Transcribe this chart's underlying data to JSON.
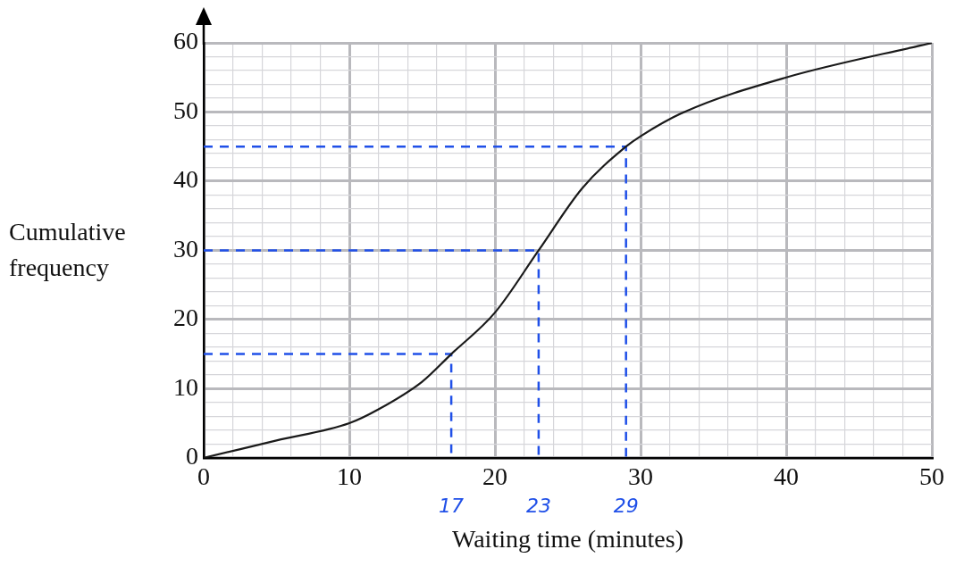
{
  "chart_data": {
    "type": "line",
    "xlabel": "Waiting time (minutes)",
    "ylabel": "Cumulative frequency",
    "xlim": [
      0,
      50
    ],
    "ylim": [
      0,
      60
    ],
    "xticks": [
      0,
      {
        "value": 2,
        "label": null
      },
      {
        "value": 4,
        "label": null
      },
      {
        "value": 6,
        "label": null
      },
      {
        "value": 8,
        "label": null
      },
      10,
      {
        "value": 12,
        "label": null
      },
      {
        "value": 14,
        "label": null
      },
      {
        "value": 16,
        "label": null
      },
      {
        "value": 18,
        "label": null
      },
      20,
      {
        "value": 22,
        "label": null
      },
      {
        "value": 24,
        "label": null
      },
      {
        "value": 26,
        "label": null
      },
      {
        "value": 28,
        "label": null
      },
      30,
      {
        "value": 32,
        "label": null
      },
      {
        "value": 34,
        "label": null
      },
      {
        "value": 36,
        "label": null
      },
      {
        "value": 38,
        "label": null
      },
      40,
      {
        "value": 42,
        "label": null
      },
      {
        "value": 44,
        "label": null
      },
      {
        "value": 46,
        "label": null
      },
      {
        "value": 48,
        "label": null
      },
      50
    ],
    "yticks": [
      0,
      {
        "value": 2,
        "label": null
      },
      {
        "value": 4,
        "label": null
      },
      {
        "value": 6,
        "label": null
      },
      {
        "value": 8,
        "label": null
      },
      10,
      {
        "value": 12,
        "label": null
      },
      {
        "value": 14,
        "label": null
      },
      {
        "value": 16,
        "label": null
      },
      {
        "value": 18,
        "label": null
      },
      20,
      {
        "value": 22,
        "label": null
      },
      {
        "value": 24,
        "label": null
      },
      {
        "value": 26,
        "label": null
      },
      {
        "value": 28,
        "label": null
      },
      30,
      {
        "value": 32,
        "label": null
      },
      {
        "value": 34,
        "label": null
      },
      {
        "value": 36,
        "label": null
      },
      {
        "value": 38,
        "label": null
      },
      40,
      {
        "value": 42,
        "label": null
      },
      {
        "value": 44,
        "label": null
      },
      {
        "value": 46,
        "label": null
      },
      {
        "value": 48,
        "label": null
      },
      50,
      {
        "value": 52,
        "label": null
      },
      {
        "value": 54,
        "label": null
      },
      {
        "value": 56,
        "label": null
      },
      {
        "value": 58,
        "label": null
      },
      60
    ],
    "grid": true,
    "legend": false,
    "marker": "none",
    "series": [
      {
        "color": "#1a1a1a",
        "x": [
          0,
          5,
          10,
          12,
          15,
          17,
          20,
          23,
          26,
          29,
          30,
          33,
          40,
          50
        ],
        "values": [
          0,
          2.5,
          5,
          7,
          11,
          15,
          21,
          30,
          39,
          45,
          46.5,
          50,
          55,
          60
        ]
      },
      {
        "color": "#2050e8",
        "line_style": "dashed",
        "x": [
          0,
          17,
          17
        ],
        "values": [
          15,
          15,
          0
        ]
      },
      {
        "color": "#2050e8",
        "line_style": "dashed",
        "x": [
          0,
          23,
          23
        ],
        "values": [
          30,
          30,
          0
        ]
      },
      {
        "color": "#2050e8",
        "line_style": "dashed",
        "x": [
          0,
          29,
          29
        ],
        "values": [
          45,
          45,
          0
        ]
      }
    ],
    "annotations": [
      {
        "text": "17",
        "x": 17,
        "y": 0
      },
      {
        "text": "23",
        "x": 23,
        "y": 0
      },
      {
        "text": "29",
        "x": 29,
        "y": 0
      }
    ]
  }
}
